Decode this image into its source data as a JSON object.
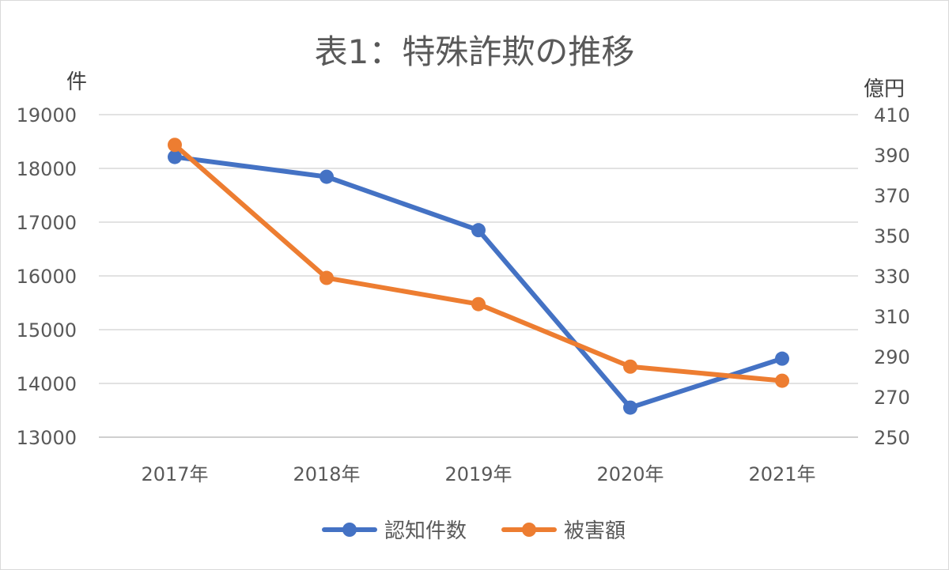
{
  "chart_data": {
    "type": "line",
    "title": "表1：特殊詐欺の推移",
    "categories": [
      "2017年",
      "2018年",
      "2019年",
      "2020年",
      "2021年"
    ],
    "y_left": {
      "label": "件",
      "ylim": [
        13000,
        19000
      ],
      "ticks": [
        19000,
        18000,
        17000,
        16000,
        15000,
        14000,
        13000
      ]
    },
    "y_right": {
      "label": "億円",
      "ylim": [
        250,
        410
      ],
      "ticks": [
        410,
        390,
        370,
        350,
        330,
        310,
        290,
        270,
        250
      ]
    },
    "grid": true,
    "legend_position": "bottom",
    "series": [
      {
        "name": "認知件数",
        "axis": "left",
        "color": "#4472C4",
        "values": [
          18212,
          17844,
          16851,
          13550,
          14461
        ]
      },
      {
        "name": "被害額",
        "axis": "right",
        "color": "#ED7D31",
        "values": [
          395,
          329,
          316,
          285,
          278
        ]
      }
    ]
  }
}
